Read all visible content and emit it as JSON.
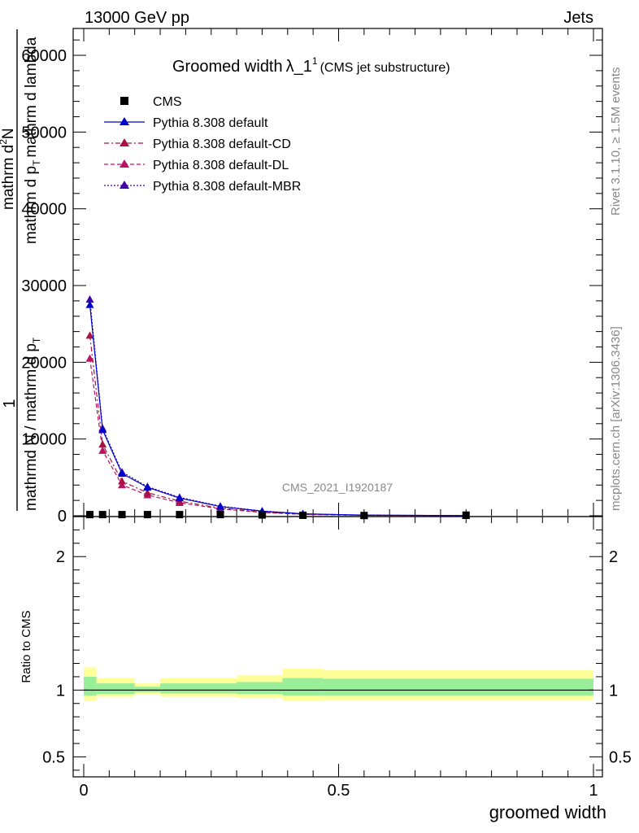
{
  "header": {
    "left": "13000 GeV pp",
    "right": "Jets"
  },
  "title": {
    "main": "Groomed width",
    "lambda": "λ_1",
    "sup": "1",
    "sub": "(CMS jet substructure)"
  },
  "watermark": "CMS_2021_I1920187",
  "side": {
    "rivet": "Rivet 3.1.10, ≥ 1.5M events",
    "mcplots": "mcplots.cern.ch [arXiv:1306.3436]"
  },
  "ylabel_main": {
    "one": "1",
    "den": "mathrmd N / mathrm d p",
    "den_sub": "T",
    "num": "mathrm d",
    "num_sup": "2",
    "num2": "N",
    "tail": "mathrm d p",
    "tail_sub": "T",
    "tail2": "mathrm d lambda"
  },
  "ylabel_ratio": "Ratio to CMS",
  "xlabel": "groomed width",
  "legend": [
    {
      "label": "CMS",
      "color": "#000000",
      "style": "marker"
    },
    {
      "label": "Pythia 8.308 default",
      "color": "#0000cc",
      "style": "solid"
    },
    {
      "label": "Pythia 8.308 default-CD",
      "color": "#aa1144",
      "style": "dashdot"
    },
    {
      "label": "Pythia 8.308 default-DL",
      "color": "#bb1166",
      "style": "dashed"
    },
    {
      "label": "Pythia 8.308 default-MBR",
      "color": "#4400aa",
      "style": "dotted"
    }
  ],
  "chart_data": {
    "type": "line",
    "xlim": [
      0,
      1
    ],
    "ylim": [
      0,
      63500
    ],
    "ratio_ylim": [
      0.35,
      2.3
    ],
    "main_yticks": [
      0,
      10000,
      20000,
      30000,
      40000,
      50000,
      60000
    ],
    "main_ytick_labels": [
      "0",
      "10000",
      "20000",
      "30000",
      "40000",
      "50000",
      "60000"
    ],
    "ratio_yticks": [
      0.5,
      1,
      2
    ],
    "ratio_ytick_labels": [
      "0.5",
      "1",
      "2"
    ],
    "xticks": [
      0,
      0.5,
      1
    ],
    "xtick_labels": [
      "0",
      "0.5",
      "1"
    ],
    "x": [
      0.012,
      0.037,
      0.075,
      0.125,
      0.188,
      0.268,
      0.35,
      0.43,
      0.55,
      0.75
    ],
    "cms": [
      150,
      150,
      150,
      150,
      150,
      150,
      100,
      60,
      30,
      80
    ],
    "series": [
      {
        "name": "Pythia 8.308 default",
        "values": [
          27500,
          11200,
          5500,
          3700,
          2300,
          1200,
          600,
          250,
          80,
          20
        ]
      },
      {
        "name": "Pythia 8.308 default-CD",
        "values": [
          23500,
          9300,
          4500,
          3000,
          1900,
          1000,
          480,
          200,
          60,
          15
        ]
      },
      {
        "name": "Pythia 8.308 default-DL",
        "values": [
          20500,
          8500,
          4000,
          2700,
          1700,
          900,
          430,
          180,
          55,
          12
        ]
      },
      {
        "name": "Pythia 8.308 default-MBR",
        "values": [
          28200,
          11400,
          5700,
          3800,
          2400,
          1250,
          620,
          260,
          85,
          22
        ]
      }
    ],
    "ratio_bands": [
      {
        "x0": 0.0,
        "x1": 0.025,
        "yellow": [
          0.92,
          1.17
        ],
        "green": [
          0.96,
          1.1
        ]
      },
      {
        "x0": 0.025,
        "x1": 0.1,
        "yellow": [
          0.95,
          1.09
        ],
        "green": [
          0.97,
          1.05
        ]
      },
      {
        "x0": 0.1,
        "x1": 0.15,
        "yellow": [
          0.97,
          1.05
        ],
        "green": [
          0.985,
          1.025
        ]
      },
      {
        "x0": 0.15,
        "x1": 0.3,
        "yellow": [
          0.95,
          1.09
        ],
        "green": [
          0.975,
          1.05
        ]
      },
      {
        "x0": 0.3,
        "x1": 0.39,
        "yellow": [
          0.94,
          1.11
        ],
        "green": [
          0.97,
          1.06
        ]
      },
      {
        "x0": 0.39,
        "x1": 0.47,
        "yellow": [
          0.92,
          1.16
        ],
        "green": [
          0.96,
          1.09
        ]
      },
      {
        "x0": 0.47,
        "x1": 1.0,
        "yellow": [
          0.925,
          1.15
        ],
        "green": [
          0.96,
          1.085
        ]
      }
    ]
  }
}
